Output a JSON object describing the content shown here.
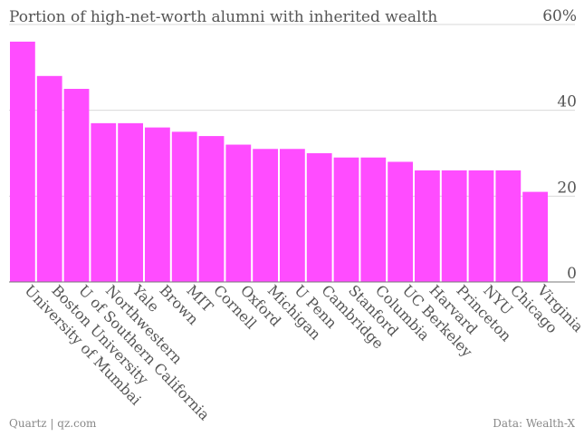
{
  "chart_data": {
    "type": "bar",
    "title": "Portion of high-net-worth alumni with inherited wealth",
    "categories": [
      "University of Mumbai",
      "Boston University",
      "U of Southern California",
      "Northwestern",
      "Yale",
      "Brown",
      "MIT",
      "Cornell",
      "Oxford",
      "Michigan",
      "U Penn",
      "Cambridge",
      "Stanford",
      "Columbia",
      "UC Berkeley",
      "Harvard",
      "Princeton",
      "NYU",
      "Chicago",
      "Virginia"
    ],
    "values": [
      56,
      48,
      45,
      37,
      37,
      36,
      35,
      34,
      32,
      31,
      31,
      30,
      29,
      29,
      28,
      26,
      26,
      26,
      26,
      21
    ],
    "ylim": [
      0,
      60
    ],
    "yticks": [
      0,
      20,
      40,
      60
    ],
    "ytick_labels": [
      "0",
      "20",
      "40",
      "60%"
    ],
    "grid": true,
    "bar_color": "#ff4cff"
  },
  "footer": {
    "source_left": "Quartz | qz.com",
    "source_right": "Data: Wealth-X"
  }
}
